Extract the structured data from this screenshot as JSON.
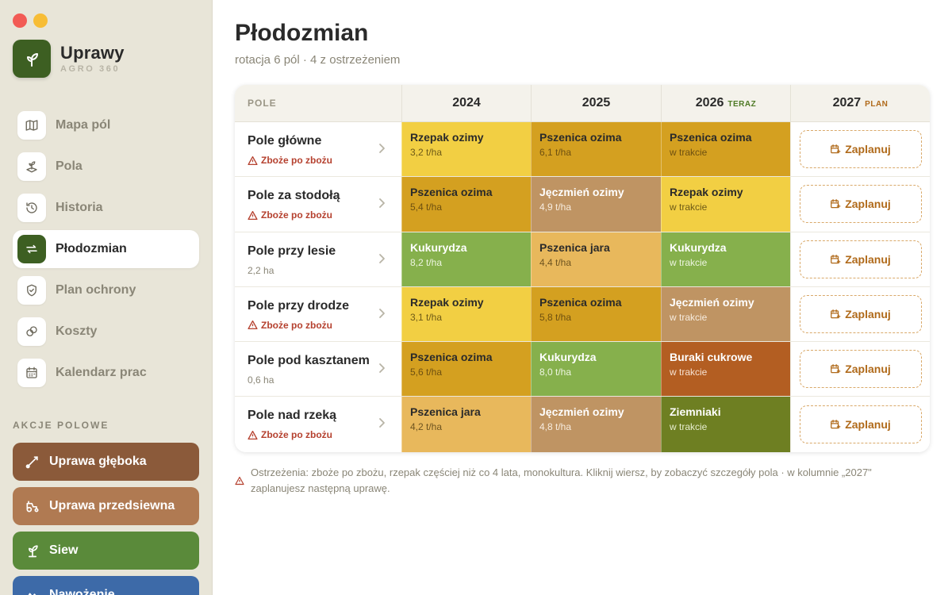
{
  "app": {
    "name": "Uprawy",
    "subtitle": "AGRO 360"
  },
  "sidebar": {
    "nav": [
      {
        "label": "Mapa pól",
        "icon": "map-icon",
        "active": false
      },
      {
        "label": "Pola",
        "icon": "sprout-field-icon",
        "active": false
      },
      {
        "label": "Historia",
        "icon": "history-icon",
        "active": false
      },
      {
        "label": "Płodozmian",
        "icon": "rotate-arrows-icon",
        "active": true
      },
      {
        "label": "Plan ochrony",
        "icon": "shield-icon",
        "active": false
      },
      {
        "label": "Koszty",
        "icon": "coins-icon",
        "active": false
      },
      {
        "label": "Kalendarz prac",
        "icon": "calendar-icon",
        "active": false
      }
    ],
    "actions_title": "AKCJE POLOWE",
    "actions": [
      {
        "label": "Uprawa głęboka",
        "color": "#8b5a3a",
        "icon": "plough-icon"
      },
      {
        "label": "Uprawa przedsiewna",
        "color": "#b07a52",
        "icon": "tractor-icon"
      },
      {
        "label": "Siew",
        "color": "#5a8a3a",
        "icon": "seedling-icon"
      },
      {
        "label": "Nawożenie",
        "color": "#3d6aa8",
        "icon": "fertilizer-icon"
      }
    ]
  },
  "page": {
    "title": "Płodozmian",
    "subtitle": "rotacja 6 pól · 4 z ostrzeżeniem"
  },
  "table": {
    "columns": {
      "field": "POLE",
      "y2024": "2024",
      "y2025": "2025",
      "y2026": "2026",
      "y2026_tag": "TERAZ",
      "y2027": "2027",
      "y2027_tag": "PLAN"
    },
    "plan_label": "Zaplanuj",
    "rows": [
      {
        "name": "Pole główne",
        "sub": "Zboże po zbożu",
        "warning": true,
        "crops": [
          {
            "name": "Rzepak ozimy",
            "sub": "3,2 t/ha",
            "bg": "#f2cf43",
            "fg": "#2a2a2a",
            "subfg": "#6e5a17"
          },
          {
            "name": "Pszenica ozima",
            "sub": "6,1 t/ha",
            "bg": "#d4a020",
            "fg": "#2a2a2a",
            "subfg": "#6e5010"
          },
          {
            "name": "Pszenica ozima",
            "sub": "w trakcie",
            "bg": "#d4a020",
            "fg": "#2a2a2a",
            "subfg": "#6e5010"
          }
        ]
      },
      {
        "name": "Pole za stodołą",
        "sub": "Zboże po zbożu",
        "warning": true,
        "crops": [
          {
            "name": "Pszenica ozima",
            "sub": "5,4 t/ha",
            "bg": "#d4a020",
            "fg": "#2a2a2a",
            "subfg": "#6e5010"
          },
          {
            "name": "Jęczmień ozimy",
            "sub": "4,9 t/ha",
            "bg": "#bf9463",
            "fg": "#ffffff",
            "subfg": "#f7ecdf"
          },
          {
            "name": "Rzepak ozimy",
            "sub": "w trakcie",
            "bg": "#f2cf43",
            "fg": "#2a2a2a",
            "subfg": "#6e5a17"
          }
        ]
      },
      {
        "name": "Pole przy lesie",
        "sub": "2,2 ha",
        "warning": false,
        "crops": [
          {
            "name": "Kukurydza",
            "sub": "8,2 t/ha",
            "bg": "#86b04c",
            "fg": "#ffffff",
            "subfg": "#edf5e0"
          },
          {
            "name": "Pszenica jara",
            "sub": "4,4 t/ha",
            "bg": "#e8b85c",
            "fg": "#2a2a2a",
            "subfg": "#6e5420"
          },
          {
            "name": "Kukurydza",
            "sub": "w trakcie",
            "bg": "#86b04c",
            "fg": "#ffffff",
            "subfg": "#edf5e0"
          }
        ]
      },
      {
        "name": "Pole przy drodze",
        "sub": "Zboże po zbożu",
        "warning": true,
        "crops": [
          {
            "name": "Rzepak ozimy",
            "sub": "3,1 t/ha",
            "bg": "#f2cf43",
            "fg": "#2a2a2a",
            "subfg": "#6e5a17"
          },
          {
            "name": "Pszenica ozima",
            "sub": "5,8 t/ha",
            "bg": "#d4a020",
            "fg": "#2a2a2a",
            "subfg": "#6e5010"
          },
          {
            "name": "Jęczmień ozimy",
            "sub": "w trakcie",
            "bg": "#bf9463",
            "fg": "#ffffff",
            "subfg": "#f7ecdf"
          }
        ]
      },
      {
        "name": "Pole pod kasztanem",
        "sub": "0,6 ha",
        "warning": false,
        "crops": [
          {
            "name": "Pszenica ozima",
            "sub": "5,6 t/ha",
            "bg": "#d4a020",
            "fg": "#2a2a2a",
            "subfg": "#6e5010"
          },
          {
            "name": "Kukurydza",
            "sub": "8,0 t/ha",
            "bg": "#86b04c",
            "fg": "#ffffff",
            "subfg": "#edf5e0"
          },
          {
            "name": "Buraki cukrowe",
            "sub": "w trakcie",
            "bg": "#b35e22",
            "fg": "#ffffff",
            "subfg": "#f7e2d2"
          }
        ]
      },
      {
        "name": "Pole nad rzeką",
        "sub": "Zboże po zbożu",
        "warning": true,
        "crops": [
          {
            "name": "Pszenica jara",
            "sub": "4,2 t/ha",
            "bg": "#e8b85c",
            "fg": "#2a2a2a",
            "subfg": "#6e5420"
          },
          {
            "name": "Jęczmień ozimy",
            "sub": "4,8 t/ha",
            "bg": "#bf9463",
            "fg": "#ffffff",
            "subfg": "#f7ecdf"
          },
          {
            "name": "Ziemniaki",
            "sub": "w trakcie",
            "bg": "#6e7f22",
            "fg": "#ffffff",
            "subfg": "#e8eed0"
          }
        ]
      }
    ]
  },
  "footnote": "Ostrzeżenia: zboże po zbożu, rzepak częściej niż co 4 lata, monokultura. Kliknij wiersz, by zobaczyć szczegóły pola · w kolumnie „2027\" zaplanujesz następną uprawę."
}
